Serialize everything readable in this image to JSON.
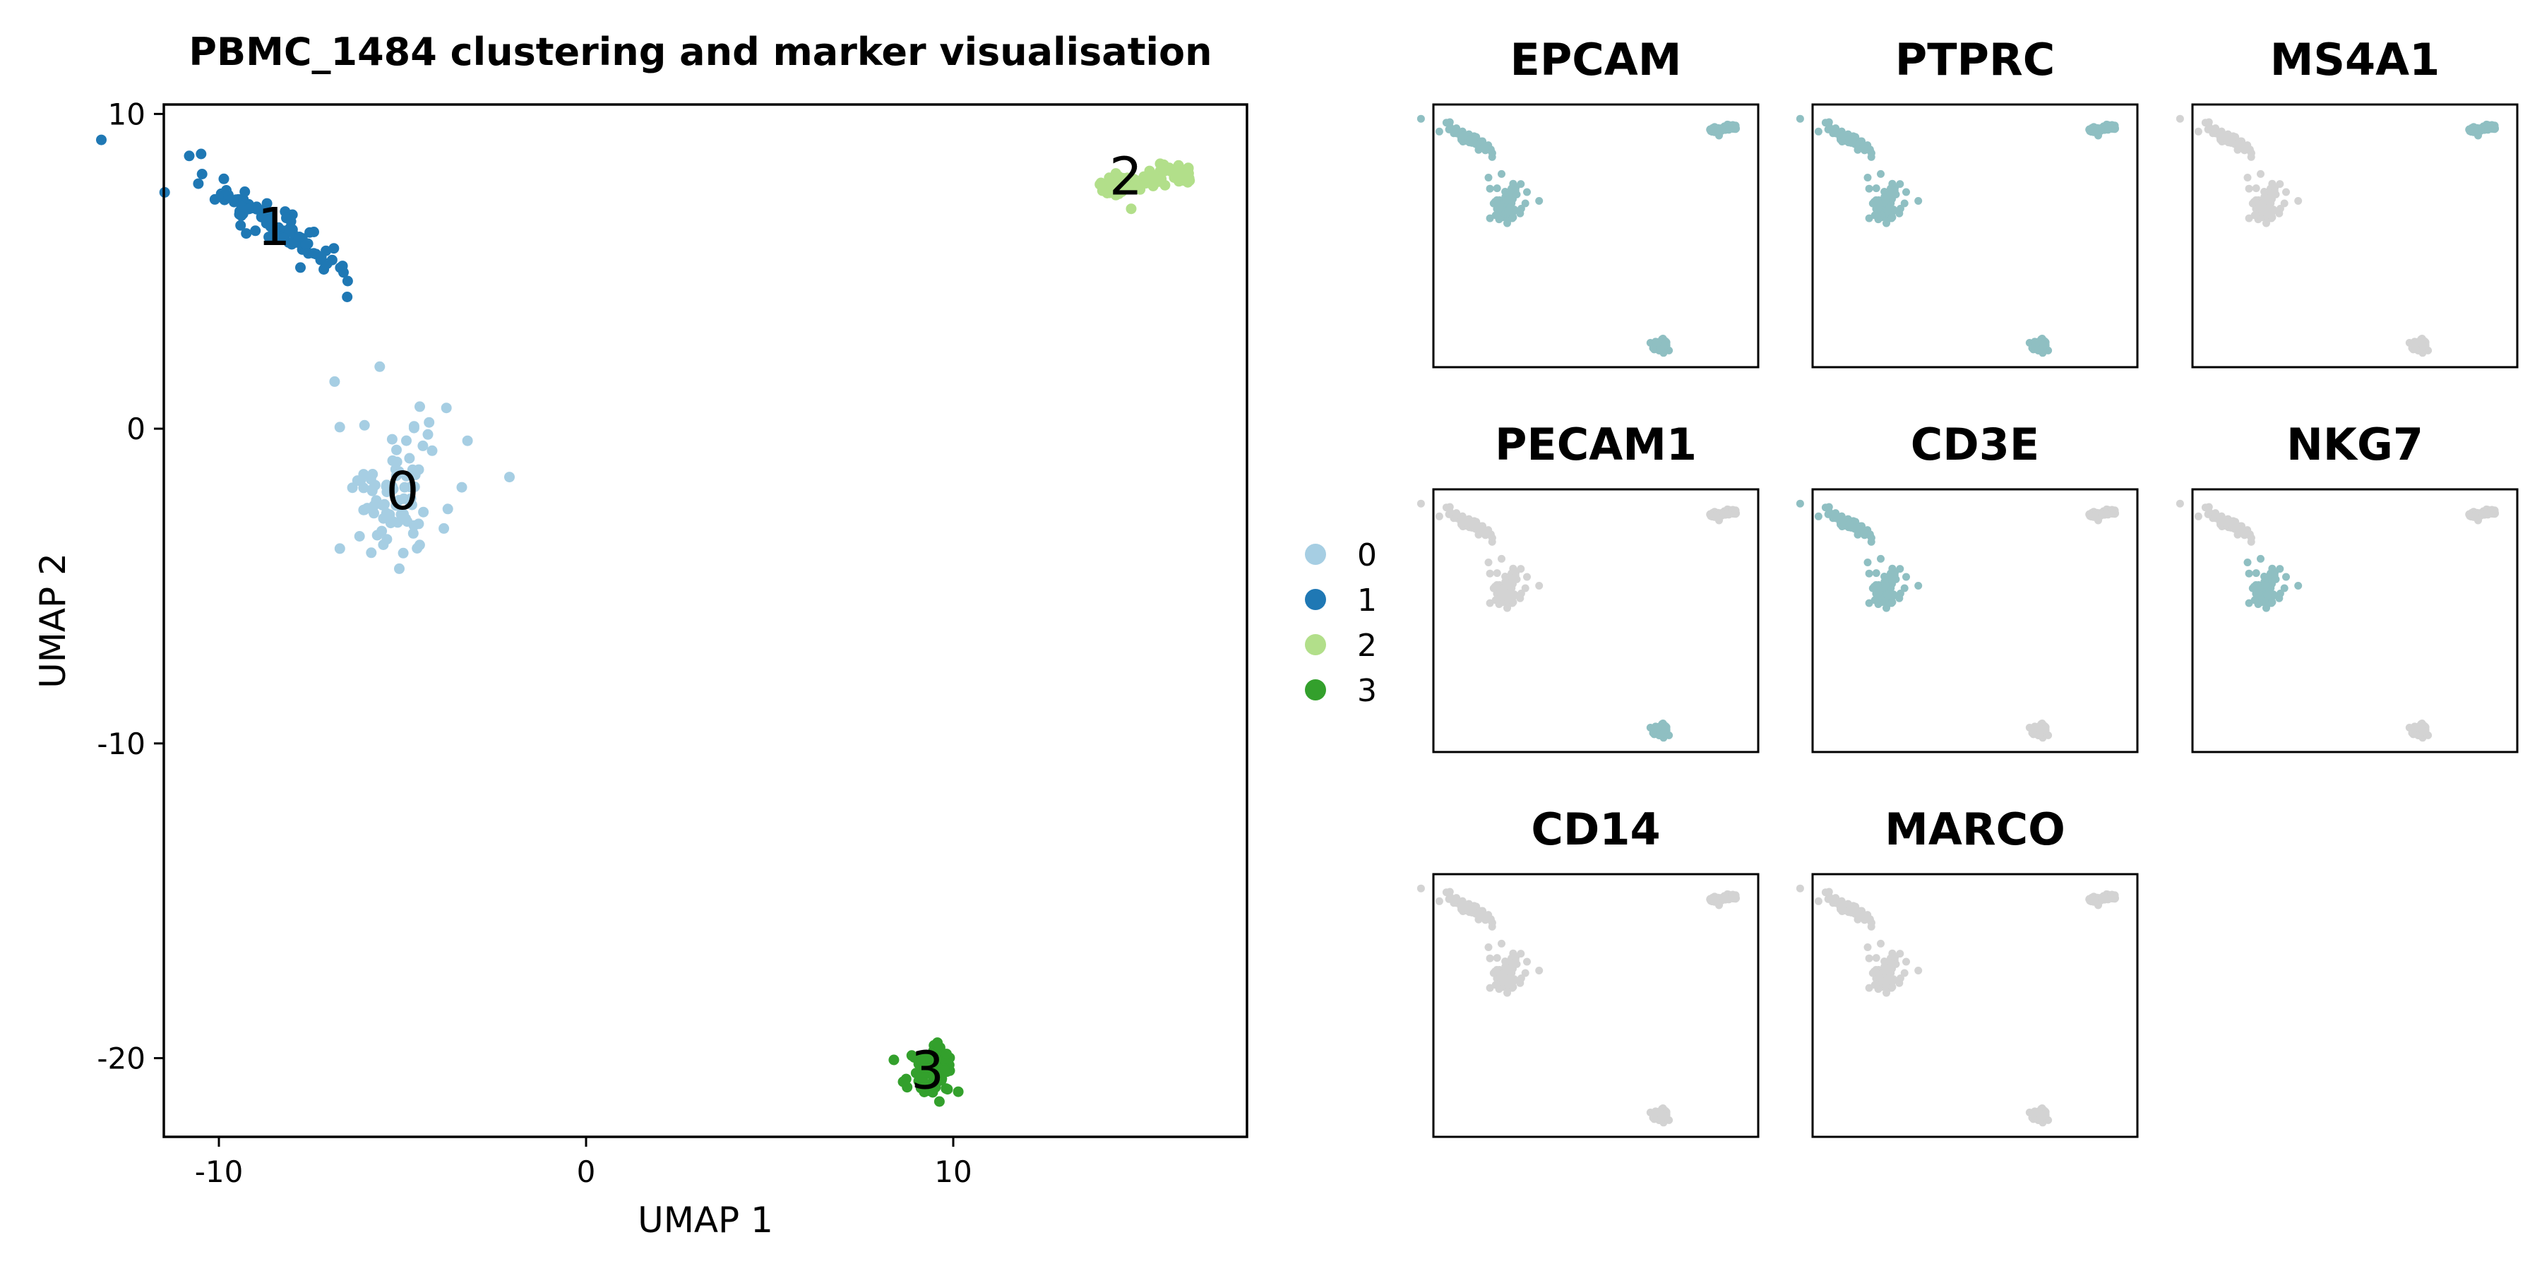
{
  "chart_data": [
    {
      "type": "scatter",
      "title": "PBMC_1484 clustering and marker visualisation",
      "xlabel": "UMAP 1",
      "ylabel": "UMAP 2",
      "xlim": [
        -11.5,
        18
      ],
      "ylim": [
        -22.5,
        10.3
      ],
      "xticks": [
        -10,
        0,
        10
      ],
      "xtick_labels": [
        "-10",
        "0",
        "10"
      ],
      "yticks": [
        10,
        0,
        -10,
        -20
      ],
      "ytick_labels": [
        "10",
        "0",
        "-10",
        "-20"
      ],
      "grid": false,
      "legend_position": "right",
      "series": [
        {
          "name": "0",
          "color": "#a6cee3",
          "center": [
            -5.2,
            -2.0
          ],
          "spread": [
            1.0,
            1.5
          ],
          "label_pos": [
            -5.0,
            -2.1
          ]
        },
        {
          "name": "1",
          "color": "#1f78b4",
          "center": [
            -8.5,
            6.5
          ],
          "spread": [
            1.0,
            0.9
          ],
          "label_pos": [
            -8.5,
            6.3
          ]
        },
        {
          "name": "2",
          "color": "#b2df8a",
          "center": [
            15.2,
            7.9
          ],
          "spread": [
            0.9,
            0.4
          ],
          "label_pos": [
            14.7,
            7.9
          ]
        },
        {
          "name": "3",
          "color": "#33a02c",
          "center": [
            9.4,
            -20.4
          ],
          "spread": [
            0.4,
            0.5
          ],
          "label_pos": [
            9.3,
            -20.5
          ]
        }
      ]
    },
    {
      "type": "scatter",
      "small_multiples": [
        {
          "title": "EPCAM",
          "expressing_clusters": [
            "0",
            "1",
            "2",
            "3"
          ]
        },
        {
          "title": "PTPRC",
          "expressing_clusters": [
            "0",
            "1",
            "2",
            "3"
          ]
        },
        {
          "title": "MS4A1",
          "expressing_clusters": [
            "2"
          ]
        },
        {
          "title": "PECAM1",
          "expressing_clusters": [
            "3"
          ]
        },
        {
          "title": "CD3E",
          "expressing_clusters": [
            "1",
            "0"
          ]
        },
        {
          "title": "NKG7",
          "expressing_clusters": [
            "0"
          ]
        },
        {
          "title": "CD14",
          "expressing_clusters": []
        },
        {
          "title": "MARCO",
          "expressing_clusters": []
        }
      ],
      "expressed_color": "#8fbfc2",
      "background_color": "#d3d3d3"
    }
  ]
}
